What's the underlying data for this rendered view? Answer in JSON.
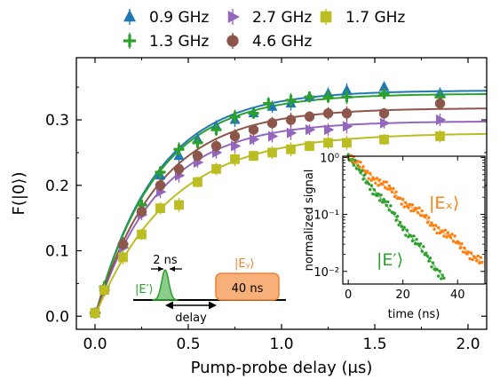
{
  "chart_data": [
    {
      "type": "scatter",
      "xlabel": "Pump-probe delay (μs)",
      "ylabel": "F(|0⟩)",
      "xlim": [
        -0.1,
        2.1
      ],
      "ylim": [
        -0.02,
        0.395
      ],
      "xticks": [
        "0.0",
        "0.5",
        "1.0",
        "1.5",
        "2.0"
      ],
      "yticks": [
        "0.0",
        "0.1",
        "0.2",
        "0.3"
      ],
      "legend_position": "top",
      "series": [
        {
          "name": "0.9 GHz",
          "color": "#1f77b4",
          "marker": "triangle-up",
          "x": [
            0.0,
            0.05,
            0.15,
            0.25,
            0.35,
            0.45,
            0.55,
            0.65,
            0.75,
            0.85,
            0.95,
            1.05,
            1.15,
            1.25,
            1.35,
            1.55,
            1.85
          ],
          "y": [
            0.005,
            0.045,
            0.11,
            0.165,
            0.215,
            0.245,
            0.27,
            0.29,
            0.3,
            0.31,
            0.32,
            0.325,
            0.335,
            0.34,
            0.345,
            0.35,
            0.34
          ],
          "fit": {
            "A": 0.345,
            "tau": 0.33
          }
        },
        {
          "name": "1.3 GHz",
          "color": "#2ca02c",
          "marker": "plus",
          "x": [
            0.0,
            0.05,
            0.15,
            0.25,
            0.35,
            0.45,
            0.55,
            0.65,
            0.75,
            0.85,
            0.93,
            1.05,
            1.15,
            1.25,
            1.35,
            1.55,
            1.85
          ],
          "y": [
            0.005,
            0.045,
            0.11,
            0.17,
            0.22,
            0.255,
            0.265,
            0.285,
            0.305,
            0.31,
            0.325,
            0.33,
            0.335,
            0.335,
            0.335,
            0.34,
            0.335
          ],
          "fit": {
            "A": 0.34,
            "tau": 0.33
          }
        },
        {
          "name": "2.7 GHz",
          "color": "#9467bd",
          "marker": "triangle-right",
          "x": [
            0.0,
            0.05,
            0.15,
            0.25,
            0.35,
            0.45,
            0.55,
            0.65,
            0.75,
            0.85,
            0.95,
            1.05,
            1.15,
            1.25,
            1.35,
            1.55,
            1.85
          ],
          "y": [
            0.005,
            0.04,
            0.105,
            0.155,
            0.19,
            0.215,
            0.235,
            0.25,
            0.26,
            0.27,
            0.275,
            0.28,
            0.285,
            0.285,
            0.29,
            0.295,
            0.3
          ],
          "fit": {
            "A": 0.298,
            "tau": 0.34
          }
        },
        {
          "name": "4.6 GHz",
          "color": "#8c564b",
          "marker": "circle",
          "x": [
            0.0,
            0.05,
            0.15,
            0.25,
            0.35,
            0.45,
            0.55,
            0.65,
            0.75,
            0.85,
            0.95,
            1.05,
            1.15,
            1.25,
            1.35,
            1.55,
            1.85
          ],
          "y": [
            0.005,
            0.04,
            0.11,
            0.16,
            0.2,
            0.225,
            0.245,
            0.26,
            0.275,
            0.285,
            0.295,
            0.3,
            0.305,
            0.31,
            0.31,
            0.31,
            0.325
          ],
          "fit": {
            "A": 0.318,
            "tau": 0.34
          }
        },
        {
          "name": "1.7 GHz",
          "color": "#bcbd22",
          "marker": "square",
          "x": [
            0.0,
            0.05,
            0.15,
            0.25,
            0.35,
            0.45,
            0.55,
            0.65,
            0.75,
            0.85,
            0.95,
            1.05,
            1.15,
            1.25,
            1.35,
            1.55,
            1.85
          ],
          "y": [
            0.005,
            0.04,
            0.09,
            0.125,
            0.165,
            0.17,
            0.205,
            0.225,
            0.24,
            0.245,
            0.25,
            0.255,
            0.26,
            0.265,
            0.265,
            0.27,
            0.275
          ],
          "fit": {
            "A": 0.28,
            "tau": 0.4
          }
        }
      ]
    },
    {
      "type": "scatter",
      "xlabel": "time (ns)",
      "ylabel": "normalized signal",
      "yscale": "log",
      "xlim": [
        -2,
        50
      ],
      "ylim": [
        0.006,
        1.05
      ],
      "xticks": [
        "0",
        "20",
        "40"
      ],
      "yticks": [
        "10⁰",
        "10⁻¹",
        "10⁻²"
      ],
      "series": [
        {
          "label": "|Eₓ⟩",
          "color": "#ff7f0e",
          "tau": 11.5
        },
        {
          "label": "|E′⟩",
          "color": "#2ca02c",
          "tau": 7.2
        }
      ]
    }
  ],
  "pulse_diagram": {
    "e_prime_label": "|E′⟩",
    "e_y_label": "|Eᵧ⟩",
    "width_label": "2 ns",
    "delay_label": "delay",
    "pulse_label": "40 ns",
    "colors": {
      "green": "#2ca02c",
      "orange": "#f7b07a"
    }
  }
}
